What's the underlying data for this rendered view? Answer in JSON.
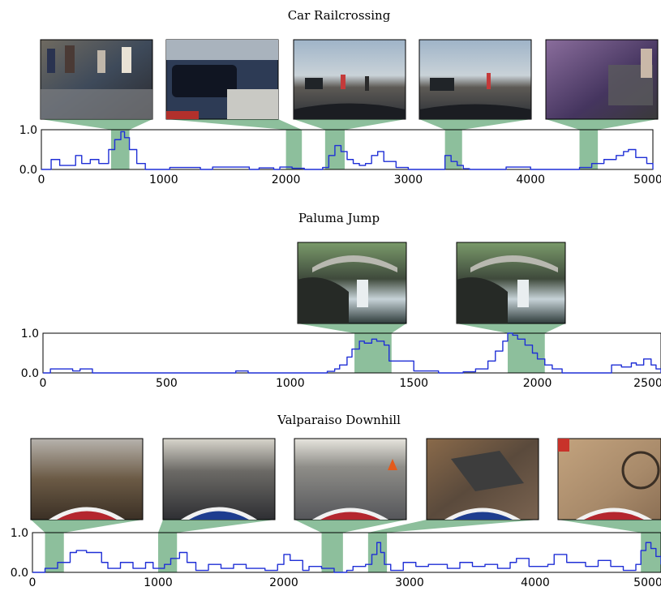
{
  "colors": {
    "trace": "#1f2fd6",
    "highlight": "#8dbf9c",
    "axis": "#000000"
  },
  "chart_data": [
    {
      "type": "line",
      "title": "Car Railcrossing",
      "xlim": [
        0,
        5000
      ],
      "ylim": [
        0.0,
        1.0
      ],
      "xticks": [
        "0",
        "1000",
        "2000",
        "3000",
        "4000",
        "5000"
      ],
      "yticks": [
        "0.0",
        "1.0"
      ],
      "highlights": [
        [
          570,
          720
        ],
        [
          2000,
          2130
        ],
        [
          2320,
          2480
        ],
        [
          3300,
          3440
        ],
        [
          4400,
          4550
        ]
      ],
      "thumbnails": [
        "crowd-by-car",
        "car-close-up",
        "dashcam-crossing",
        "dashcam-crossing-2",
        "blurred-crowd"
      ],
      "x": [
        0,
        80,
        150,
        280,
        330,
        400,
        470,
        550,
        600,
        650,
        680,
        720,
        780,
        850,
        950,
        1050,
        1300,
        1400,
        1700,
        1780,
        1900,
        1950,
        2050,
        2150,
        2250,
        2300,
        2350,
        2400,
        2450,
        2500,
        2550,
        2600,
        2650,
        2700,
        2750,
        2800,
        2900,
        3000,
        3250,
        3300,
        3350,
        3400,
        3450,
        3500,
        3700,
        3800,
        4000,
        4300,
        4400,
        4500,
        4600,
        4700,
        4760,
        4800,
        4860,
        4950,
        5000
      ],
      "y": [
        0.0,
        0.25,
        0.1,
        0.35,
        0.15,
        0.25,
        0.15,
        0.5,
        0.75,
        0.95,
        0.8,
        0.5,
        0.15,
        0.0,
        0.0,
        0.05,
        0.0,
        0.06,
        0.0,
        0.04,
        0.0,
        0.06,
        0.03,
        0.0,
        0.0,
        0.05,
        0.35,
        0.6,
        0.45,
        0.25,
        0.15,
        0.1,
        0.15,
        0.35,
        0.45,
        0.2,
        0.05,
        0.0,
        0.0,
        0.35,
        0.2,
        0.1,
        0.02,
        0.0,
        0.0,
        0.06,
        0.0,
        0.0,
        0.05,
        0.15,
        0.25,
        0.35,
        0.45,
        0.5,
        0.3,
        0.15,
        0.0
      ]
    },
    {
      "type": "line",
      "title": "Paluma Jump",
      "xlim": [
        0,
        2500
      ],
      "ylim": [
        0.0,
        1.0
      ],
      "xticks": [
        "0",
        "500",
        "1000",
        "1500",
        "2000",
        "2500"
      ],
      "yticks": [
        "0.0",
        "1.0"
      ],
      "highlights": [
        [
          1260,
          1410
        ],
        [
          1880,
          2030
        ]
      ],
      "thumbnails": [
        "waterfall-bridge",
        "waterfall-bridge-2"
      ],
      "x": [
        0,
        30,
        80,
        120,
        150,
        200,
        780,
        830,
        1050,
        1150,
        1180,
        1200,
        1230,
        1250,
        1280,
        1300,
        1330,
        1350,
        1380,
        1400,
        1500,
        1600,
        1700,
        1750,
        1800,
        1830,
        1860,
        1880,
        1900,
        1920,
        1950,
        1980,
        2000,
        2030,
        2060,
        2100,
        2200,
        2300,
        2340,
        2380,
        2400,
        2430,
        2460,
        2480,
        2500
      ],
      "y": [
        0.0,
        0.1,
        0.1,
        0.05,
        0.1,
        0.0,
        0.05,
        0.0,
        0.0,
        0.04,
        0.1,
        0.2,
        0.4,
        0.6,
        0.8,
        0.75,
        0.85,
        0.8,
        0.7,
        0.3,
        0.05,
        0.0,
        0.03,
        0.1,
        0.3,
        0.55,
        0.8,
        1.0,
        0.95,
        0.85,
        0.7,
        0.5,
        0.35,
        0.2,
        0.1,
        0.0,
        0.0,
        0.2,
        0.15,
        0.25,
        0.2,
        0.35,
        0.2,
        0.1,
        0.0
      ]
    },
    {
      "type": "line",
      "title": "Valparaiso Downhill",
      "xlim": [
        0,
        5000
      ],
      "ylim": [
        0.0,
        1.0
      ],
      "xticks": [
        "0",
        "1000",
        "2000",
        "3000",
        "4000",
        "5000"
      ],
      "yticks": [
        "0.0",
        "1.0"
      ],
      "highlights": [
        [
          100,
          250
        ],
        [
          1000,
          1150
        ],
        [
          2300,
          2470
        ],
        [
          2670,
          2820
        ],
        [
          4840,
          5000
        ]
      ],
      "thumbnails": [
        "downhill-fence",
        "downhill-alley",
        "downhill-street-cones",
        "downhill-crowd",
        "downhill-shadow"
      ],
      "x": [
        0,
        100,
        200,
        300,
        350,
        430,
        550,
        600,
        700,
        800,
        900,
        960,
        1050,
        1100,
        1170,
        1230,
        1300,
        1400,
        1500,
        1600,
        1700,
        1850,
        1950,
        2000,
        2050,
        2150,
        2200,
        2300,
        2400,
        2500,
        2550,
        2650,
        2700,
        2740,
        2770,
        2800,
        2850,
        2950,
        3050,
        3150,
        3300,
        3400,
        3500,
        3600,
        3700,
        3800,
        3850,
        3950,
        4100,
        4150,
        4250,
        4400,
        4500,
        4600,
        4700,
        4800,
        4840,
        4880,
        4920,
        4960,
        5000
      ],
      "y": [
        0.0,
        0.1,
        0.25,
        0.5,
        0.55,
        0.5,
        0.25,
        0.1,
        0.25,
        0.1,
        0.25,
        0.1,
        0.2,
        0.35,
        0.5,
        0.25,
        0.05,
        0.2,
        0.1,
        0.2,
        0.1,
        0.05,
        0.2,
        0.45,
        0.3,
        0.05,
        0.15,
        0.1,
        0.0,
        0.05,
        0.15,
        0.2,
        0.45,
        0.75,
        0.5,
        0.2,
        0.05,
        0.25,
        0.15,
        0.2,
        0.1,
        0.25,
        0.15,
        0.2,
        0.1,
        0.25,
        0.35,
        0.15,
        0.2,
        0.45,
        0.25,
        0.15,
        0.3,
        0.15,
        0.05,
        0.2,
        0.55,
        0.75,
        0.6,
        0.4,
        0.2
      ]
    }
  ]
}
